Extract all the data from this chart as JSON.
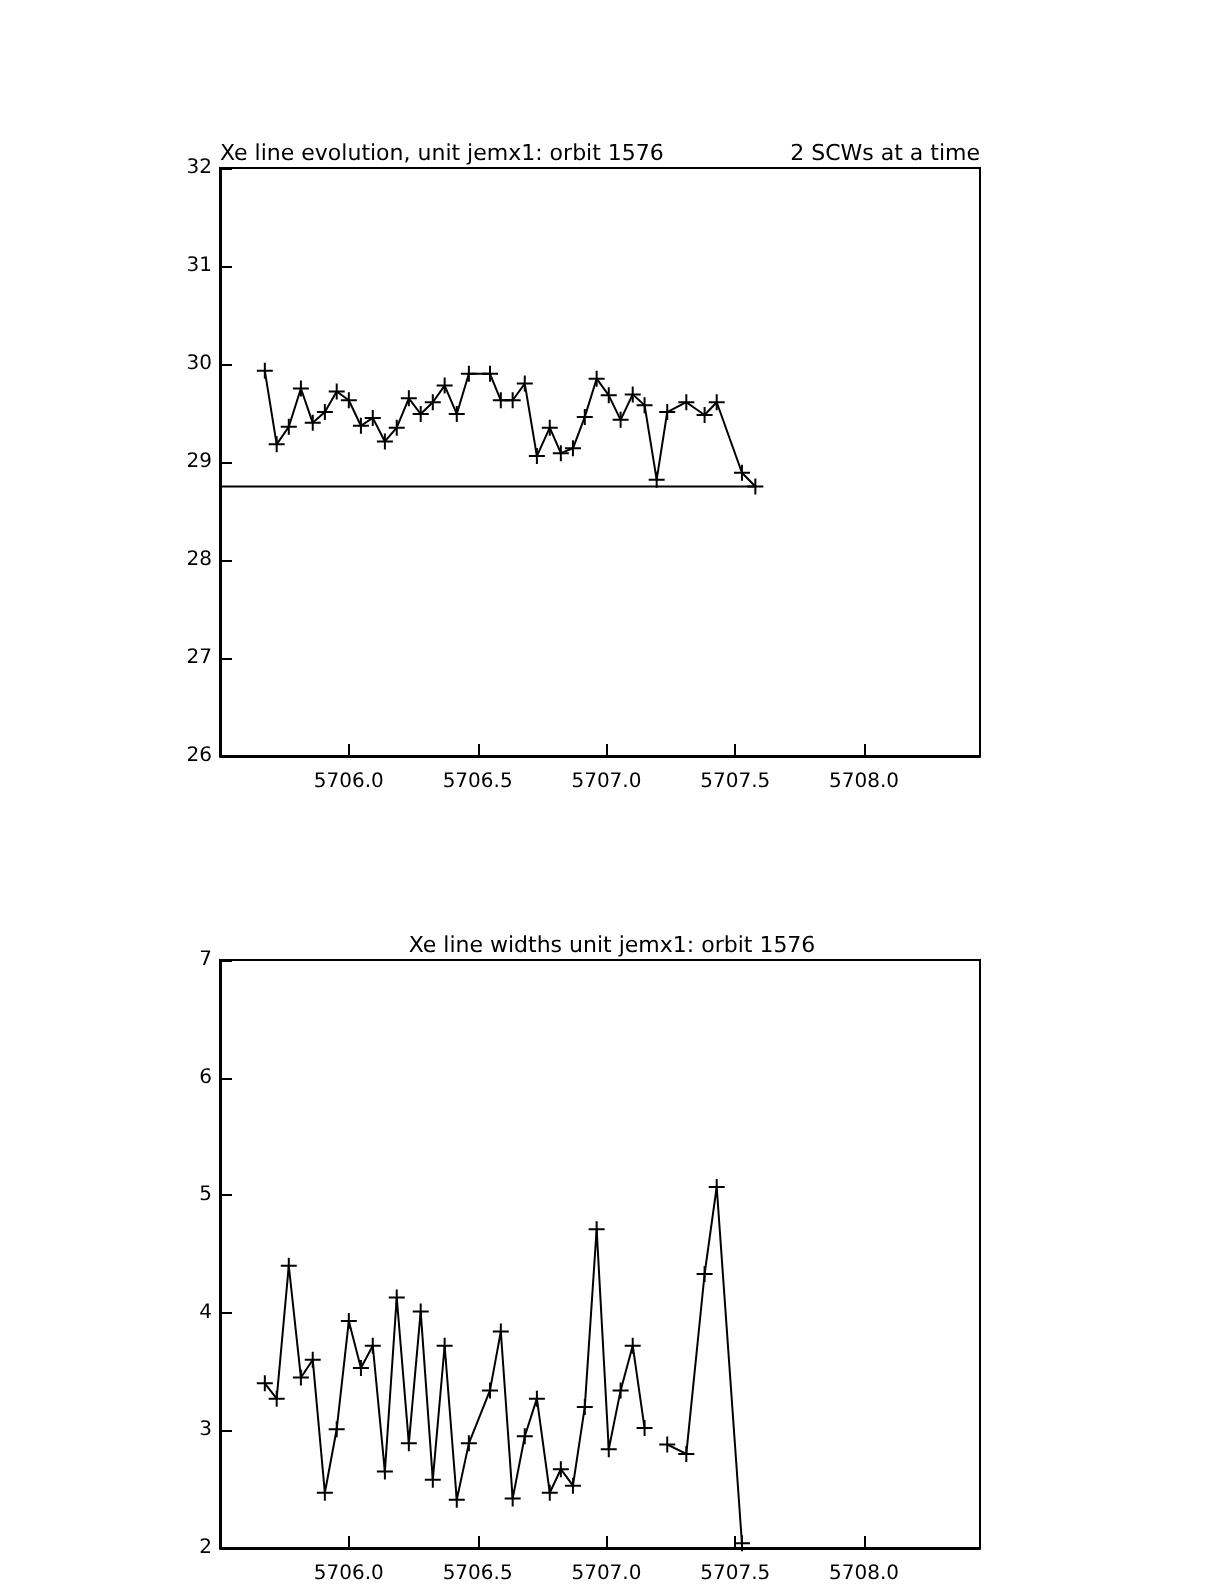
{
  "chart_data": [
    {
      "type": "line",
      "title": "Xe line evolution, unit jemx1: orbit 1576",
      "subtitle": "2 SCWs at a time",
      "marker": "cross",
      "grid": false,
      "xlim": [
        5705.5,
        5708.45
      ],
      "xticks": [
        {
          "value": 5706,
          "label": "5706.0"
        },
        {
          "value": 5706.5,
          "label": "5706.5"
        },
        {
          "value": 5707,
          "label": "5707.0"
        },
        {
          "value": 5707.5,
          "label": "5707.5"
        },
        {
          "value": 5708,
          "label": "5708.0"
        }
      ],
      "ylim": [
        26,
        32
      ],
      "yticks": [
        26,
        27,
        28,
        29,
        30,
        31,
        32
      ],
      "series": [
        {
          "color": "#000000",
          "x": [
            5705.674,
            5705.72,
            5705.767,
            5705.814,
            5705.86,
            5705.907,
            5705.953,
            5706.0,
            5706.047,
            5706.093,
            5706.14,
            5706.186,
            5706.233,
            5706.279,
            5706.326,
            5706.372,
            5706.419,
            5706.466,
            5706.548,
            5706.59,
            5706.636,
            5706.683,
            5706.73,
            5706.78,
            5706.823,
            5706.87,
            5706.916,
            5706.962,
            5707.009,
            5707.055,
            5707.102,
            5707.148,
            5707.195,
            5707.236,
            5707.31,
            5707.381,
            5707.428,
            5707.526,
            5707.578
          ],
          "values": [
            29.93,
            29.18,
            29.36,
            29.75,
            29.4,
            29.51,
            29.72,
            29.63,
            29.37,
            29.45,
            29.21,
            29.35,
            29.65,
            29.49,
            29.61,
            29.78,
            29.49,
            29.9,
            29.9,
            29.63,
            29.63,
            29.8,
            29.06,
            29.35,
            29.09,
            29.14,
            29.46,
            29.85,
            29.68,
            29.43,
            29.69,
            29.58,
            28.82,
            29.51,
            29.61,
            29.48,
            29.61,
            28.89,
            28.75
          ]
        },
        {
          "color": "#000000",
          "marker": "none",
          "x": [
            5705.5,
            5707.578
          ],
          "values": [
            28.75,
            28.75
          ]
        }
      ]
    },
    {
      "type": "line",
      "title": "Xe line widths unit jemx1: orbit 1576",
      "marker": "cross",
      "grid": false,
      "xlim": [
        5705.5,
        5708.45
      ],
      "xticks": [
        {
          "value": 5706,
          "label": "5706.0"
        },
        {
          "value": 5706.5,
          "label": "5706.5"
        },
        {
          "value": 5707,
          "label": "5707.0"
        },
        {
          "value": 5707.5,
          "label": "5707.5"
        },
        {
          "value": 5708,
          "label": "5708.0"
        }
      ],
      "ylim": [
        2,
        7
      ],
      "yticks": [
        2,
        3,
        4,
        5,
        6,
        7
      ],
      "series": [
        {
          "color": "#000000",
          "x": [
            5705.674,
            5705.72,
            5705.767,
            5705.814,
            5705.86,
            5705.907,
            5705.953,
            5706.0,
            5706.047,
            5706.093,
            5706.14,
            5706.186,
            5706.233,
            5706.279,
            5706.326,
            5706.372,
            5706.419,
            5706.466,
            5706.548,
            5706.59,
            5706.636,
            5706.683,
            5706.73,
            5706.78,
            5706.823,
            5706.87,
            5706.916,
            5706.962,
            5707.009,
            5707.055,
            5707.102,
            5707.148,
            5707.195,
            5707.236,
            5707.31,
            5707.381,
            5707.428,
            5707.526
          ],
          "values": [
            3.4,
            3.27,
            4.4,
            3.45,
            3.6,
            2.47,
            3.01,
            3.93,
            3.53,
            3.72,
            2.65,
            4.13,
            2.89,
            4.01,
            2.58,
            3.72,
            2.41,
            2.89,
            3.34,
            3.84,
            2.42,
            2.95,
            3.27,
            2.47,
            2.67,
            2.53,
            3.2,
            4.71,
            2.84,
            3.34,
            3.72,
            3.02,
            null,
            2.88,
            2.8,
            4.33,
            5.07,
            2.04
          ]
        }
      ]
    }
  ]
}
